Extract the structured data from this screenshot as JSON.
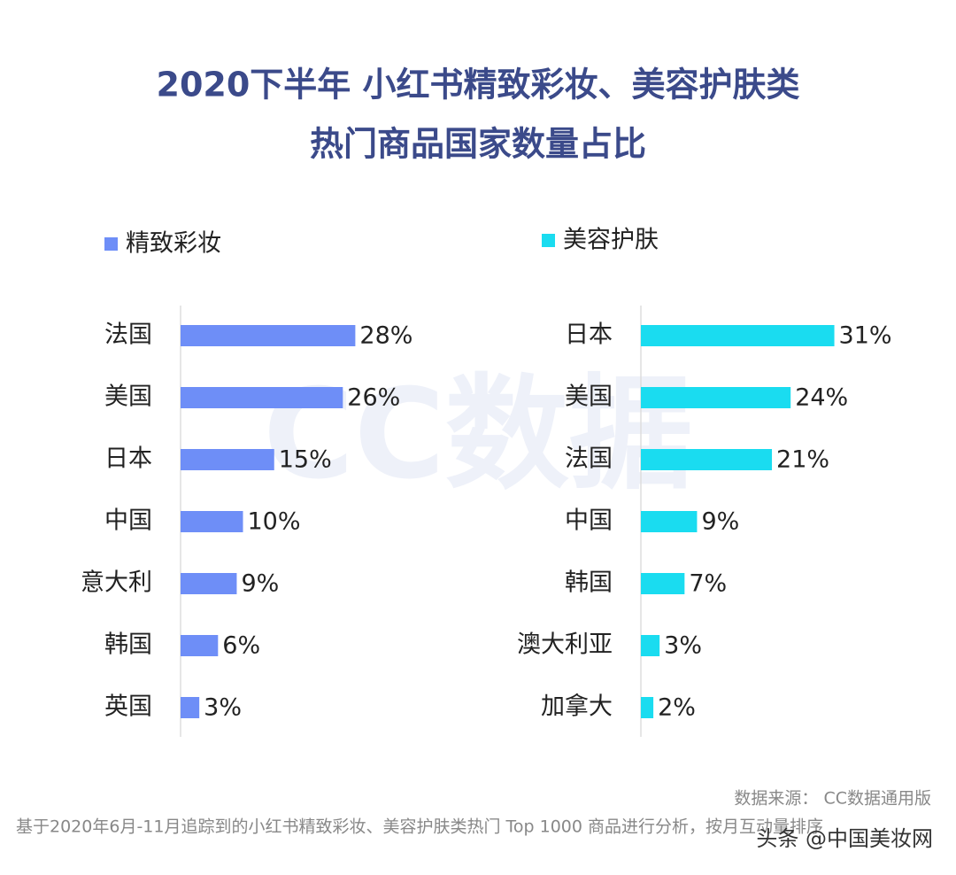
{
  "title": [
    "2020下半年 小红书精致彩妆、美容护肤类",
    "热门商品国家数量占比"
  ],
  "watermark": "CC数据",
  "chart_data": [
    {
      "type": "bar",
      "orientation": "horizontal",
      "categories": [
        "法国",
        "美国",
        "日本",
        "中国",
        "意大利",
        "韩国",
        "英国"
      ],
      "series": [
        {
          "name": "精致彩妆",
          "color": "#6e8ef7",
          "values": [
            28,
            26,
            15,
            10,
            9,
            6,
            3
          ],
          "value_labels": [
            "28%",
            "26%",
            "15%",
            "10%",
            "9%",
            "6%",
            "3%"
          ]
        }
      ]
    },
    {
      "type": "bar",
      "orientation": "horizontal",
      "categories": [
        "日本",
        "美国",
        "法国",
        "中国",
        "韩国",
        "澳大利亚",
        "加拿大"
      ],
      "series": [
        {
          "name": "美容护肤",
          "color": "#1adcf0",
          "values": [
            31,
            24,
            21,
            9,
            7,
            3,
            2
          ],
          "value_labels": [
            "31%",
            "24%",
            "21%",
            "9%",
            "7%",
            "3%",
            "2%"
          ]
        }
      ]
    }
  ],
  "source": "数据来源： CC数据通用版",
  "note": "基于2020年6月-11月追踪到的小红书精致彩妆、美容护肤类热门 Top 1000 商品进行分析，按月互动量排序",
  "overlay": "头条 @中国美妆网"
}
